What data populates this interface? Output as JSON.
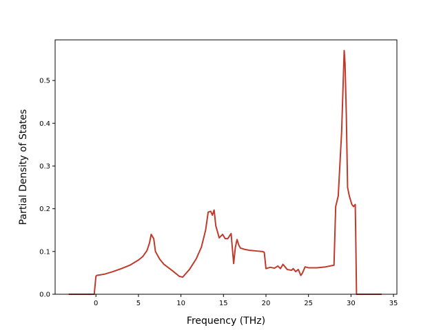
{
  "chart_data": {
    "type": "line",
    "title": "",
    "xlabel": "Frequency (THz)",
    "ylabel": "Partial Density of States",
    "xlim": [
      -4.8,
      35.4
    ],
    "ylim": [
      0.0,
      0.595
    ],
    "xticks": [
      0,
      5,
      10,
      15,
      20,
      25,
      30,
      35
    ],
    "xtick_labels": [
      "0",
      "5",
      "10",
      "15",
      "20",
      "25",
      "30",
      "35"
    ],
    "yticks": [
      0.0,
      0.1,
      0.2,
      0.3,
      0.4,
      0.5
    ],
    "ytick_labels": [
      "0.0",
      "0.1",
      "0.2",
      "0.3",
      "0.4",
      "0.5"
    ],
    "grid": false,
    "legend": "none",
    "series": [
      {
        "color": "#c0392b",
        "x": [
          -3.2,
          -0.2,
          0.0,
          0.1,
          1,
          2,
          3,
          4,
          5,
          5.5,
          6,
          6.3,
          6.5,
          6.8,
          7,
          7.5,
          8,
          9,
          9.8,
          10.2,
          11,
          11.8,
          12.4,
          12.9,
          13.2,
          13.5,
          13.7,
          13.9,
          14.1,
          14.5,
          14.9,
          15.2,
          15.5,
          15.9,
          16.2,
          16.4,
          16.6,
          16.8,
          17,
          17.5,
          18,
          19,
          19.6,
          19.8,
          20.0,
          20.5,
          21,
          21.4,
          21.7,
          22,
          22.5,
          23,
          23.2,
          23.5,
          23.8,
          24.1,
          24.3,
          24.6,
          25,
          26,
          27,
          28,
          28.2,
          28.5,
          28.9,
          29.2,
          29.3,
          29.45,
          29.6,
          29.8,
          30.1,
          30.3,
          30.5,
          30.55,
          30.65,
          31.5,
          33.6
        ],
        "y": [
          0.0,
          0.0,
          0.042,
          0.044,
          0.047,
          0.053,
          0.06,
          0.068,
          0.08,
          0.088,
          0.102,
          0.12,
          0.14,
          0.13,
          0.1,
          0.082,
          0.07,
          0.055,
          0.042,
          0.04,
          0.058,
          0.083,
          0.11,
          0.15,
          0.192,
          0.194,
          0.185,
          0.197,
          0.16,
          0.132,
          0.14,
          0.13,
          0.13,
          0.142,
          0.072,
          0.11,
          0.128,
          0.115,
          0.108,
          0.105,
          0.103,
          0.101,
          0.1,
          0.098,
          0.06,
          0.063,
          0.061,
          0.066,
          0.06,
          0.07,
          0.058,
          0.056,
          0.06,
          0.053,
          0.058,
          0.044,
          0.05,
          0.064,
          0.062,
          0.062,
          0.064,
          0.068,
          0.205,
          0.23,
          0.38,
          0.57,
          0.54,
          0.42,
          0.25,
          0.23,
          0.21,
          0.205,
          0.21,
          0.15,
          0.0,
          0.0,
          0.0
        ]
      }
    ]
  }
}
